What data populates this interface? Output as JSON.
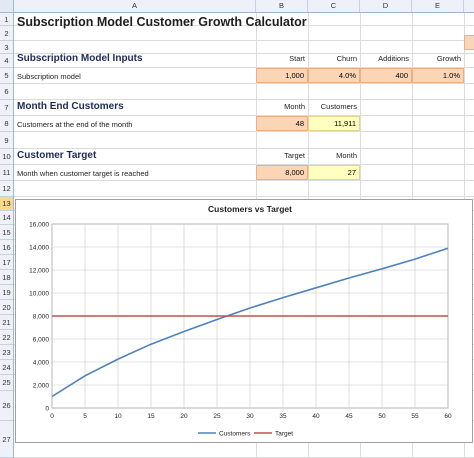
{
  "columns": [
    "A",
    "B",
    "C",
    "D",
    "E"
  ],
  "rows": [
    "1",
    "2",
    "3",
    "4",
    "5",
    "6",
    "7",
    "8",
    "9",
    "10",
    "11",
    "12",
    "13",
    "14",
    "15",
    "16",
    "17",
    "18",
    "19",
    "20",
    "21",
    "22",
    "23",
    "24",
    "25",
    "26",
    "27"
  ],
  "selected_row": "13",
  "title": "Subscription Model Customer Growth Calculator",
  "inputs": {
    "section": "Subscription Model Inputs",
    "headers": [
      "Start",
      "Churn",
      "Additions",
      "Growth"
    ],
    "row_label": "Subscription model",
    "values": [
      "1,000",
      "4.0%",
      "400",
      "1.0%"
    ]
  },
  "month_end": {
    "section": "Month End Customers",
    "headers": [
      "Month",
      "Customers"
    ],
    "row_label": "Customers at the end of the month",
    "values": [
      "48",
      "11,911"
    ]
  },
  "target": {
    "section": "Customer Target",
    "headers": [
      "Target",
      "Month"
    ],
    "row_label": "Month when customer target is reached",
    "values": [
      "8,000",
      "27"
    ]
  },
  "chart_data": {
    "type": "line",
    "title": "Customers  vs  Target",
    "x": [
      0,
      5,
      10,
      15,
      20,
      25,
      30,
      35,
      40,
      45,
      50,
      55,
      60
    ],
    "xticks": [
      "0",
      "5",
      "10",
      "15",
      "20",
      "25",
      "30",
      "35",
      "40",
      "45",
      "50",
      "55",
      "60"
    ],
    "yticks": [
      "0",
      "2,000",
      "4,000",
      "6,000",
      "8,000",
      "10,000",
      "12,000",
      "14,000",
      "16,000"
    ],
    "xlim": [
      0,
      60
    ],
    "ylim": [
      0,
      16000
    ],
    "grid": true,
    "legend": "bottom",
    "series": [
      {
        "name": "Customers",
        "color": "#4f81bd",
        "values": [
          1000,
          2800,
          4250,
          5550,
          6650,
          7700,
          8700,
          9600,
          10450,
          11300,
          12100,
          12950,
          13900
        ]
      },
      {
        "name": "Target",
        "color": "#c0504d",
        "values": [
          8000,
          8000,
          8000,
          8000,
          8000,
          8000,
          8000,
          8000,
          8000,
          8000,
          8000,
          8000,
          8000
        ]
      }
    ]
  }
}
